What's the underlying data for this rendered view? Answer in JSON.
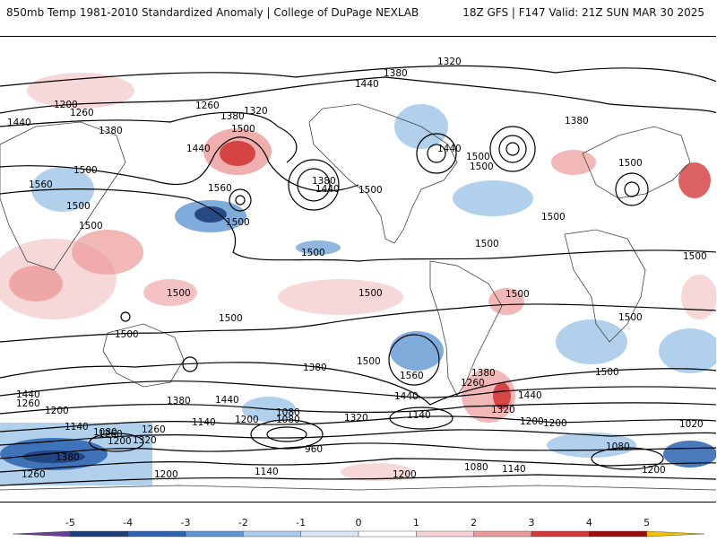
{
  "header": {
    "title": "850mb Temp 1981-2010 Standardized Anomaly | College of DuPage NEXLAB",
    "run_info": "18Z GFS | F147 Valid: 21Z SUN MAR 30 2025"
  },
  "contour_labels": [
    "1320",
    "1380",
    "1440",
    "1200",
    "1260",
    "1260",
    "1320",
    "1380",
    "1440",
    "1500",
    "1440",
    "1380",
    "1440",
    "1500",
    "1560",
    "1500",
    "1500",
    "1500",
    "1560",
    "1380",
    "1500",
    "1440",
    "1500",
    "1500",
    "1500",
    "1500",
    "1500",
    "1500",
    "1500",
    "1500",
    "1500",
    "1500",
    "1500",
    "1380",
    "1500",
    "1560",
    "1380",
    "1500",
    "1440",
    "1260",
    "1440",
    "1320",
    "1380",
    "1200",
    "1200",
    "1080",
    "1140",
    "1080",
    "1140",
    "1200",
    "1260",
    "1080",
    "1320",
    "960",
    "1140",
    "1200",
    "1260",
    "1140",
    "1200",
    "1140",
    "1080",
    "1320",
    "1380",
    "1440",
    "1200",
    "1080",
    "1020",
    "1260",
    "1200",
    "1440",
    "1500",
    "1380",
    "1500",
    "1200",
    "1260"
  ],
  "legend": {
    "ticks": [
      "-5",
      "-4",
      "-3",
      "-2",
      "-1",
      "0",
      "1",
      "2",
      "3",
      "4",
      "5"
    ],
    "colors": [
      "#6a3d9a",
      "#1f3f7a",
      "#2c63b0",
      "#5f97d2",
      "#a9cbea",
      "#d8e8f5",
      "#ffffff",
      "#f6d4d4",
      "#ec9a9a",
      "#d33a3a",
      "#9c0d0d",
      "#f2c200"
    ]
  }
}
